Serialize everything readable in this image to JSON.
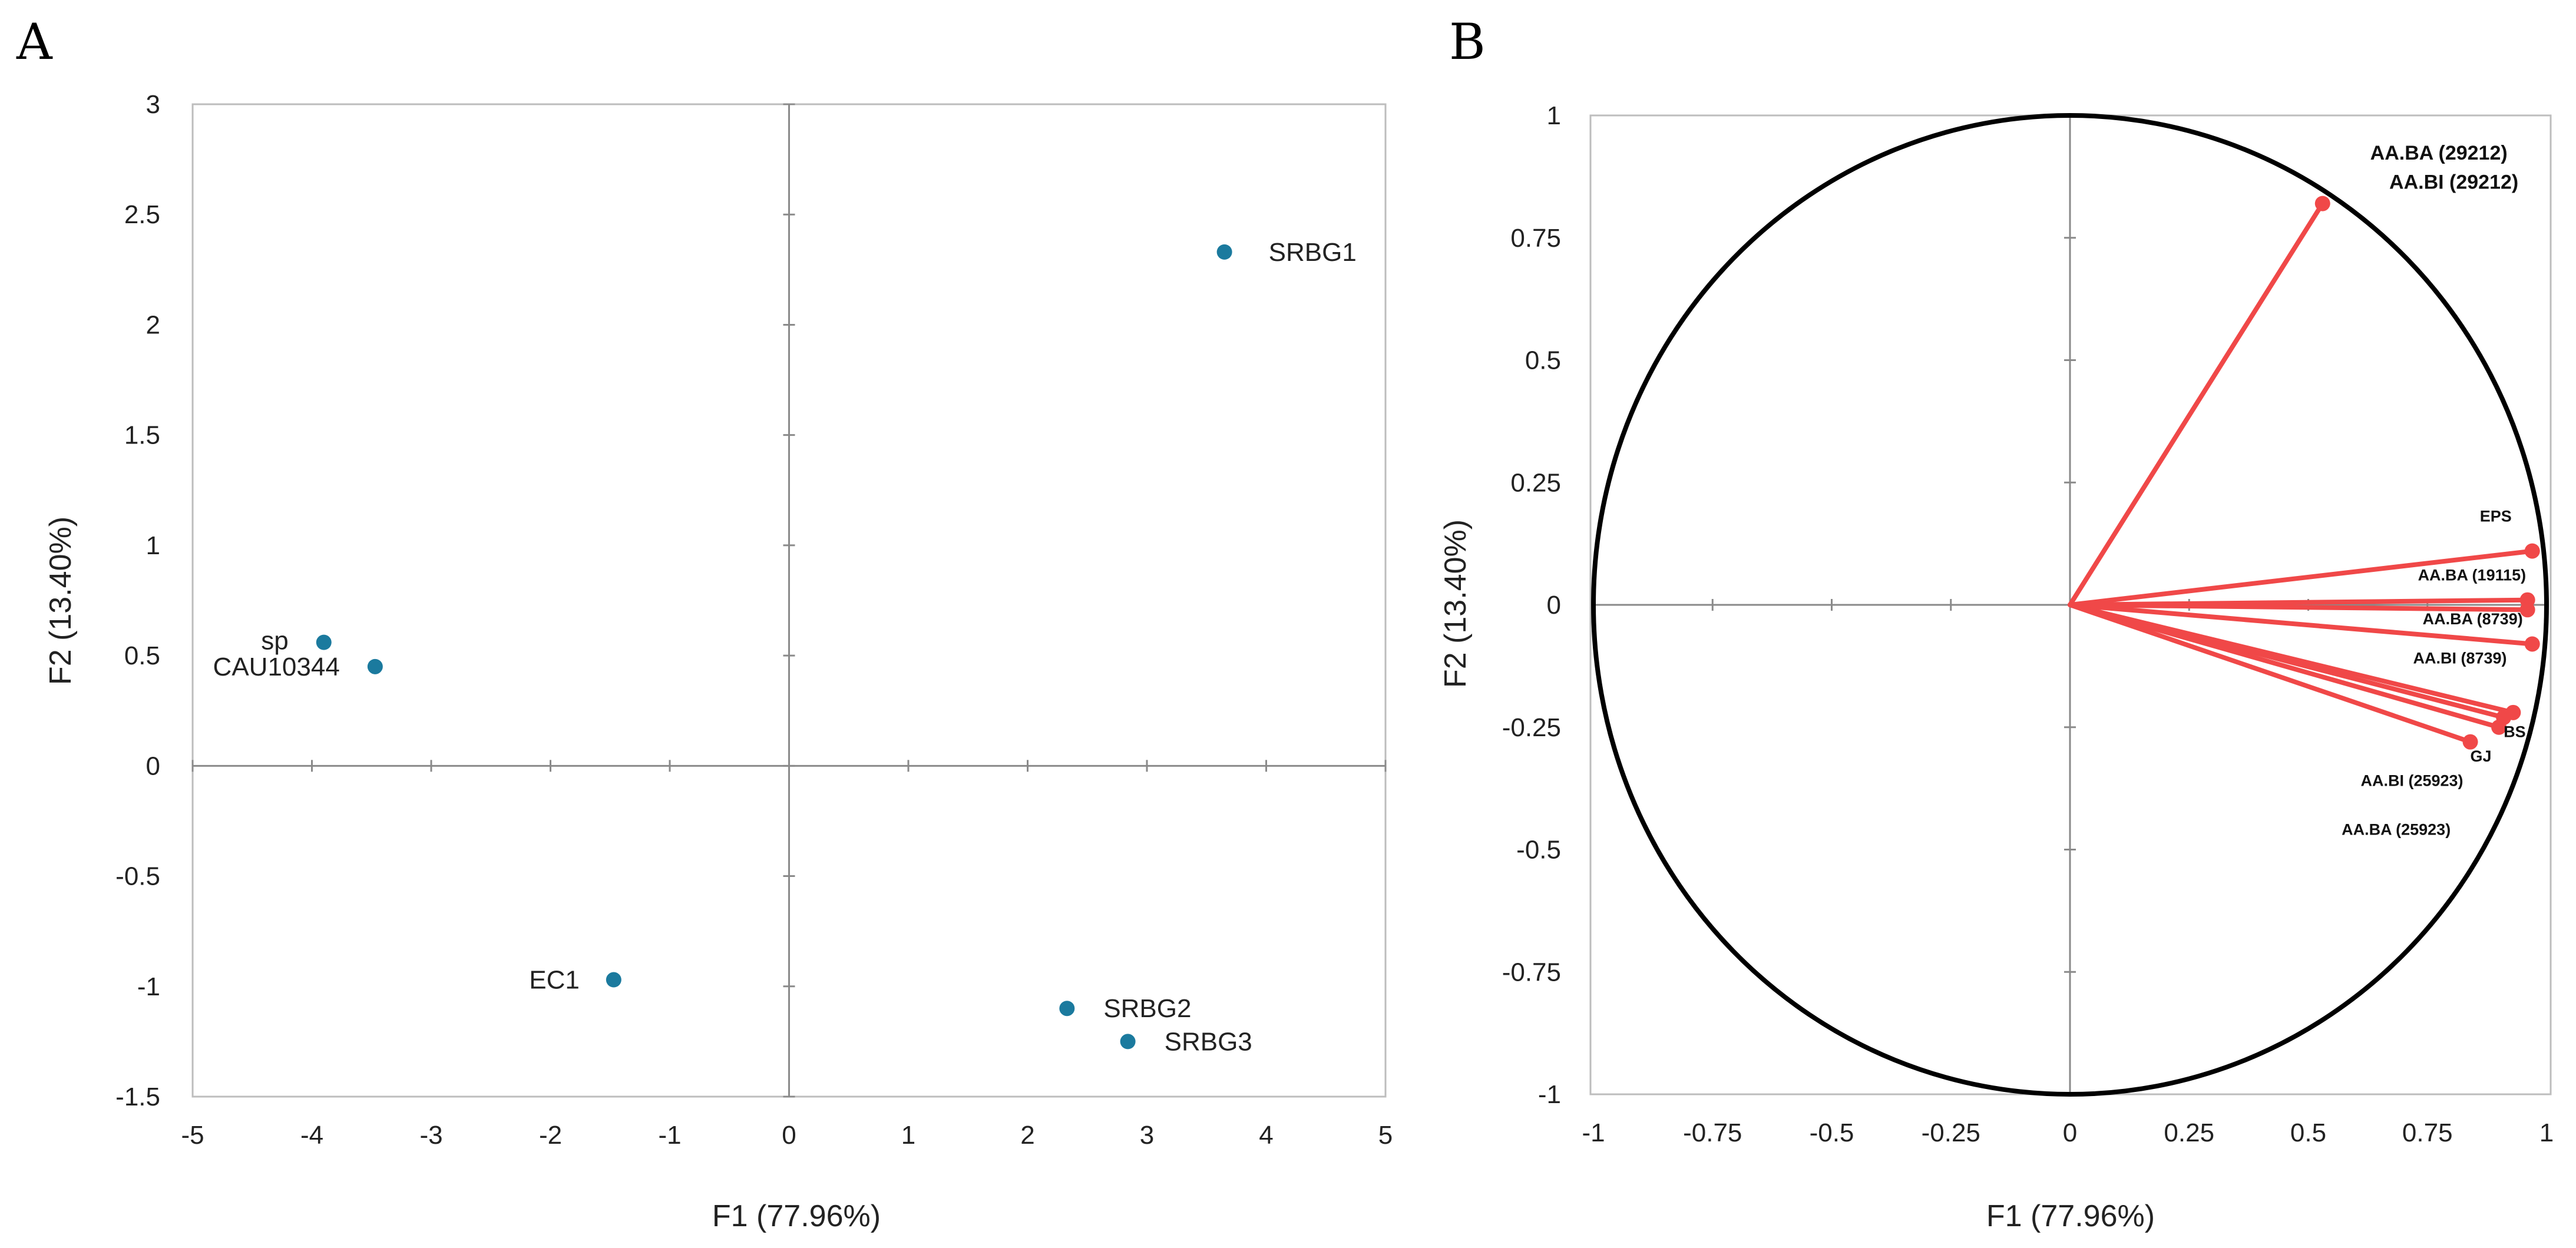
{
  "chart_data": [
    {
      "panel": "A",
      "type": "scatter",
      "xlabel": "F1 (77.96%)",
      "ylabel": "F2 (13.40%)",
      "xlim": [
        -5,
        5
      ],
      "ylim": [
        -1.5,
        3
      ],
      "xticks": [
        -5,
        -4,
        -3,
        -2,
        -1,
        0,
        1,
        2,
        3,
        4,
        5
      ],
      "yticks": [
        -1.5,
        -1,
        -0.5,
        0,
        0.5,
        1,
        1.5,
        2,
        2.5,
        3
      ],
      "color": "#1b7a9e",
      "points": [
        {
          "label": "SRBG1",
          "x": 3.65,
          "y": 2.33
        },
        {
          "label": "sp",
          "x": -3.9,
          "y": 0.56
        },
        {
          "label": "CAU10344",
          "x": -3.47,
          "y": 0.45
        },
        {
          "label": "EC1",
          "x": -1.47,
          "y": -0.97
        },
        {
          "label": "SRBG2",
          "x": 2.33,
          "y": -1.1
        },
        {
          "label": "SRBG3",
          "x": 2.84,
          "y": -1.25
        }
      ]
    },
    {
      "panel": "B",
      "type": "scatter",
      "subtype": "correlation-circle",
      "xlabel": "F1 (77.96%)",
      "ylabel": "F2 (13.40%)",
      "xlim": [
        -1,
        1
      ],
      "ylim": [
        -1,
        1
      ],
      "xticks": [
        -1,
        -0.75,
        -0.5,
        -0.25,
        0,
        0.25,
        0.5,
        0.75,
        1
      ],
      "yticks": [
        -1,
        -0.75,
        -0.5,
        -0.25,
        0,
        0.25,
        0.5,
        0.75,
        1
      ],
      "circle_color": "#000000",
      "vector_color": "#f04848",
      "vectors": [
        {
          "x": 0.53,
          "y": 0.82
        },
        {
          "x": 0.97,
          "y": 0.11
        },
        {
          "x": 0.96,
          "y": 0.01
        },
        {
          "x": 0.96,
          "y": -0.01
        },
        {
          "x": 0.97,
          "y": -0.08
        },
        {
          "x": 0.93,
          "y": -0.22
        },
        {
          "x": 0.91,
          "y": -0.23
        },
        {
          "x": 0.9,
          "y": -0.25
        },
        {
          "x": 0.84,
          "y": -0.28
        }
      ],
      "labels": [
        {
          "text": "AA.BA (29212)",
          "x": 0.63,
          "y": 0.91
        },
        {
          "text": "AA.BI (29212)",
          "x": 0.67,
          "y": 0.85
        },
        {
          "text": "EPS",
          "x": 0.86,
          "y": 0.17
        },
        {
          "text": "AA.BA (19115)",
          "x": 0.73,
          "y": 0.05
        },
        {
          "text": "AA.BA (8739)",
          "x": 0.74,
          "y": -0.04
        },
        {
          "text": "AA.BI (8739)",
          "x": 0.72,
          "y": -0.12
        },
        {
          "text": "BS",
          "x": 0.91,
          "y": -0.27
        },
        {
          "text": "GJ",
          "x": 0.84,
          "y": -0.32
        },
        {
          "text": "AA.BI (25923)",
          "x": 0.61,
          "y": -0.37
        },
        {
          "text": "AA.BA (25923)",
          "x": 0.57,
          "y": -0.47
        }
      ]
    }
  ]
}
